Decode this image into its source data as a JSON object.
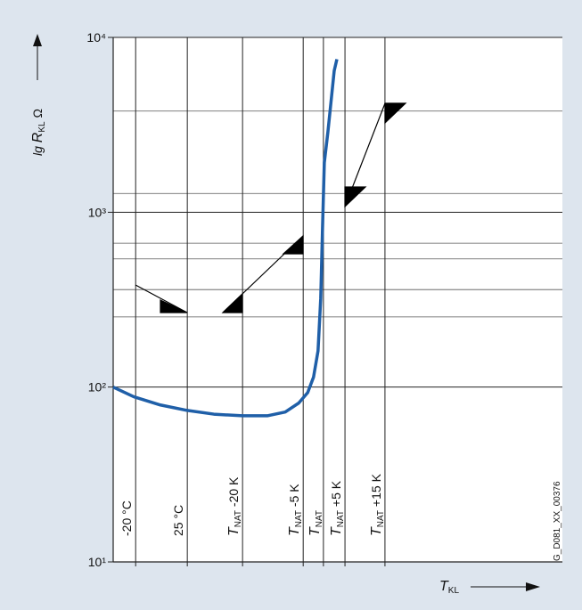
{
  "chart_data": {
    "type": "line",
    "y_label": "lg RKL Ω",
    "x_label": "TKL",
    "code": "G_D081_XX_00376",
    "log_y": true,
    "grid": true,
    "xlim": [
      0,
      100
    ],
    "ylim": [
      10,
      10000
    ],
    "yticks": [
      {
        "value": 10,
        "label": "10¹"
      },
      {
        "value": 100,
        "label": "10²"
      },
      {
        "value": 1000,
        "label": "10³"
      },
      {
        "value": 10000,
        "label": "10⁴"
      }
    ],
    "xticks": [
      {
        "value": 5,
        "label": "-20 °C"
      },
      {
        "value": 16.5,
        "label": "25 °C"
      },
      {
        "value": 28.8,
        "label": "TNAT -20 K"
      },
      {
        "value": 42.3,
        "label": "TNAT -5 K"
      },
      {
        "value": 46.8,
        "label": "TNAT"
      },
      {
        "value": 51.6,
        "label": "TNAT +5 K"
      },
      {
        "value": 60.5,
        "label": "TNAT +15 K"
      }
    ],
    "ref_lines": [
      3790,
      1280,
      665,
      541,
      361,
      252
    ],
    "series": [
      {
        "color": "#1f5fa8",
        "x": [
          0,
          4.6,
          10.5,
          16.5,
          22.4,
          28.8,
          34.3,
          38.3,
          41.3,
          43.3,
          44.6,
          45.6,
          46.2,
          46.6,
          47.0,
          47.8,
          48.6,
          49.2,
          49.8
        ],
        "values": [
          100,
          88,
          79,
          73.5,
          70,
          68.5,
          68.5,
          72,
          81,
          93,
          114,
          161,
          321,
          809,
          1920,
          2880,
          4560,
          6440,
          7500
        ]
      }
    ]
  }
}
